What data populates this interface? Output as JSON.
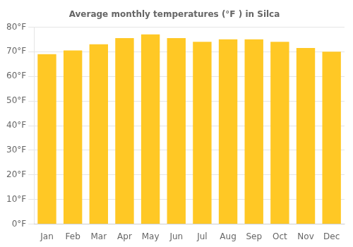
{
  "chart_data": {
    "type": "bar",
    "title": "Average monthly temperatures (°F ) in Silca",
    "categories": [
      "Jan",
      "Feb",
      "Mar",
      "Apr",
      "May",
      "Jun",
      "Jul",
      "Aug",
      "Sep",
      "Oct",
      "Nov",
      "Dec"
    ],
    "values": [
      69,
      70.5,
      73,
      75.5,
      77,
      75.5,
      74,
      75,
      75,
      74,
      71.5,
      70
    ],
    "color": "#FFC825",
    "ylim": [
      0,
      80
    ],
    "yticks": [
      {
        "value": 0,
        "label": "0°F"
      },
      {
        "value": 10,
        "label": "10°F"
      },
      {
        "value": 20,
        "label": "20°F"
      },
      {
        "value": 30,
        "label": "30°F"
      },
      {
        "value": 40,
        "label": "40°F"
      },
      {
        "value": 50,
        "label": "50°F"
      },
      {
        "value": 60,
        "label": "60°F"
      },
      {
        "value": 70,
        "label": "70°F"
      },
      {
        "value": 80,
        "label": "80°F"
      }
    ],
    "grid": true
  }
}
